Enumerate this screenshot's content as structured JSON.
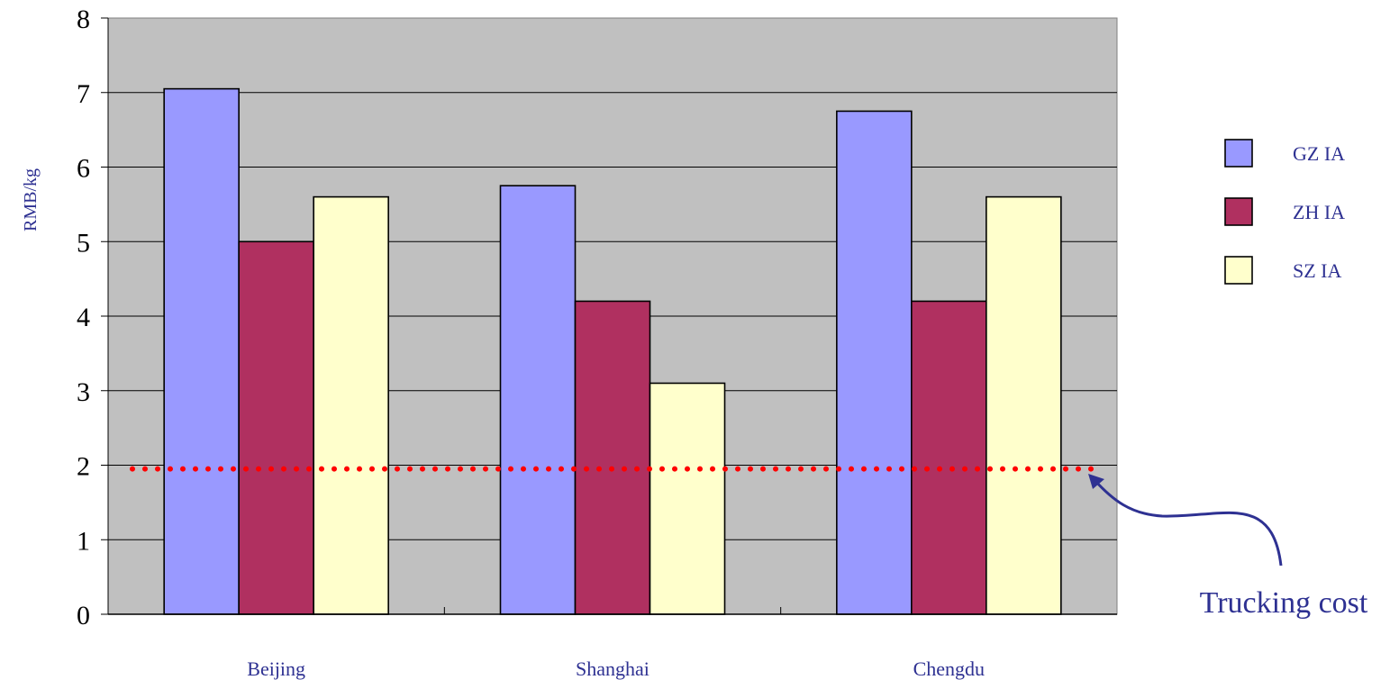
{
  "chart_data": {
    "type": "bar",
    "categories": [
      "Beijing",
      "Shanghai",
      "Chengdu"
    ],
    "series": [
      {
        "name": "GZ IA",
        "color": "#9999ff",
        "values": [
          7.05,
          5.75,
          6.75
        ]
      },
      {
        "name": "ZH IA",
        "color": "#b03060",
        "values": [
          5.0,
          4.2,
          4.2
        ]
      },
      {
        "name": "SZ IA",
        "color": "#ffffcc",
        "values": [
          5.6,
          3.1,
          5.6
        ]
      }
    ],
    "title": "",
    "xlabel": "",
    "ylabel": "RMB/kg",
    "ylim": [
      0,
      8
    ],
    "yticks": [
      "0",
      "1",
      "2",
      "3",
      "4",
      "5",
      "6",
      "7",
      "8"
    ],
    "grid": true,
    "legend_position": "right",
    "reference_line": {
      "value": 1.95,
      "color": "#ff0000",
      "style": "dotted"
    },
    "annotation": {
      "text": "Trucking cost",
      "color": "#2e3192"
    },
    "colors": {
      "plot_background": "#c0c0c0",
      "grid": "#000000",
      "axis_text": "#000000",
      "label_text": "#2e3192"
    }
  }
}
